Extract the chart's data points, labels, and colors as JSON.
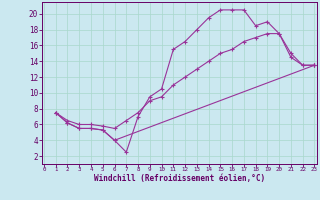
{
  "xlabel": "Windchill (Refroidissement éolien,°C)",
  "bg_color": "#cbe8f0",
  "line_color": "#993399",
  "grid_color": "#a8d8cc",
  "axis_color": "#660066",
  "text_color": "#660066",
  "x_ticks": [
    0,
    1,
    2,
    3,
    4,
    5,
    6,
    7,
    8,
    9,
    10,
    11,
    12,
    13,
    14,
    15,
    16,
    17,
    18,
    19,
    20,
    21,
    22,
    23
  ],
  "y_ticks": [
    2,
    4,
    6,
    8,
    10,
    12,
    14,
    16,
    18,
    20
  ],
  "xlim": [
    -0.2,
    23.2
  ],
  "ylim": [
    1.0,
    21.5
  ],
  "series": [
    {
      "x": [
        1,
        2,
        3,
        4,
        5,
        6,
        7,
        8,
        9,
        10,
        11,
        12,
        13,
        14,
        15,
        16,
        17,
        18,
        19,
        20,
        21,
        22,
        23
      ],
      "y": [
        7.5,
        6.2,
        5.5,
        5.5,
        5.3,
        4.0,
        2.5,
        7.0,
        9.5,
        10.5,
        15.5,
        16.5,
        18.0,
        19.5,
        20.5,
        20.5,
        20.5,
        18.5,
        19.0,
        17.5,
        14.5,
        13.5,
        13.5
      ]
    },
    {
      "x": [
        1,
        2,
        3,
        4,
        5,
        6,
        7,
        8,
        9,
        10,
        11,
        12,
        13,
        14,
        15,
        16,
        17,
        18,
        19,
        20,
        21,
        22,
        23
      ],
      "y": [
        7.5,
        6.5,
        6.0,
        6.0,
        5.8,
        5.5,
        6.5,
        7.5,
        9.0,
        9.5,
        11.0,
        12.0,
        13.0,
        14.0,
        15.0,
        15.5,
        16.5,
        17.0,
        17.5,
        17.5,
        15.0,
        13.5,
        13.5
      ]
    },
    {
      "x": [
        1,
        2,
        3,
        4,
        5,
        6,
        23
      ],
      "y": [
        7.5,
        6.2,
        5.5,
        5.5,
        5.3,
        4.0,
        13.5
      ]
    }
  ]
}
